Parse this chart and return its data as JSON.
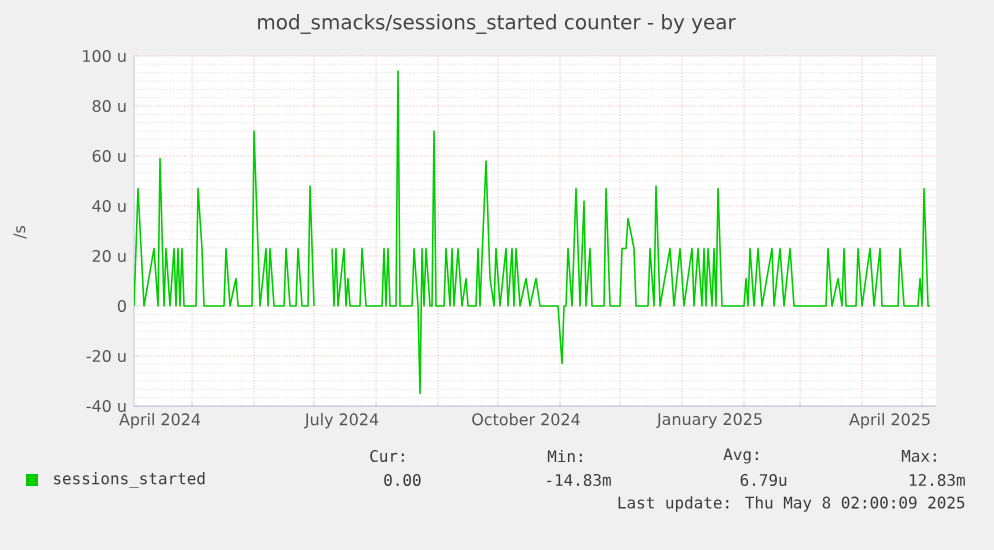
{
  "chart_data": {
    "type": "line",
    "title": "mod_smacks/sessions_started counter - by year",
    "ylabel": "/s",
    "xlim": [
      "2024-04-02",
      "2025-05-08"
    ],
    "xticks": [
      {
        "value": "2024-04-15",
        "label": "April 2024"
      },
      {
        "value": "2024-07-15",
        "label": "July 2024"
      },
      {
        "value": "2024-10-15",
        "label": "October 2024"
      },
      {
        "value": "2025-01-15",
        "label": "January 2025"
      },
      {
        "value": "2025-04-15",
        "label": "April 2025"
      },
      {
        "value": "2024-05-01",
        "label": null
      },
      {
        "value": "2024-06-01",
        "label": null
      },
      {
        "value": "2024-07-01",
        "label": null
      },
      {
        "value": "2024-08-01",
        "label": null
      },
      {
        "value": "2024-09-01",
        "label": null
      },
      {
        "value": "2024-10-01",
        "label": null
      },
      {
        "value": "2024-11-01",
        "label": null
      },
      {
        "value": "2024-12-01",
        "label": null
      },
      {
        "value": "2025-01-01",
        "label": null
      },
      {
        "value": "2025-02-01",
        "label": null
      },
      {
        "value": "2025-03-01",
        "label": null
      },
      {
        "value": "2025-04-01",
        "label": null
      },
      {
        "value": "2025-05-01",
        "label": null
      }
    ],
    "ylim": [
      -40,
      100
    ],
    "yticks": [
      {
        "value": -40,
        "label": "-40 u"
      },
      {
        "value": -20,
        "label": "-20 u"
      },
      0,
      {
        "value": 20,
        "label": "20 u"
      },
      {
        "value": 40,
        "label": "40 u"
      },
      {
        "value": 60,
        "label": "60 u"
      },
      {
        "value": 80,
        "label": "80 u"
      },
      {
        "value": 100,
        "label": "100 u"
      }
    ],
    "grid": true,
    "legend": "bottom",
    "marker": "none",
    "line_style": "solid",
    "annotations": [
      "Cur:",
      "Min:",
      "Avg:",
      "Max:",
      "0.00",
      "-14.83m",
      "6.79u",
      "12.83m",
      "Last update: Thu May  8 02:00:09 2025"
    ],
    "series": [
      {
        "name": "sessions_started",
        "color": "#00cc00",
        "x": [
          "2024-04-02",
          "2024-04-04",
          "2024-04-07",
          "2024-04-12",
          "2024-04-14",
          "2024-04-15",
          "2024-04-17",
          "2024-04-18",
          "2024-04-20",
          "2024-04-22",
          "2024-04-23",
          "2024-04-24",
          "2024-04-25",
          "2024-04-26",
          "2024-04-27",
          "2024-05-03",
          "2024-05-04",
          "2024-05-06",
          "2024-05-07",
          "2024-05-17",
          "2024-05-18",
          "2024-05-20",
          "2024-05-23",
          "2024-05-24",
          "2024-05-31",
          "2024-06-01",
          "2024-06-03",
          "2024-06-04",
          "2024-06-07",
          "2024-06-08",
          "2024-06-09",
          "2024-06-11",
          "2024-06-16",
          "2024-06-17",
          "2024-06-19",
          "2024-06-22",
          "2024-06-23",
          "2024-06-25",
          "2024-06-28",
          "2024-06-29",
          "2024-07-01",
          "2024-07-05",
          "2024-07-10",
          "2024-07-11",
          "2024-07-12",
          "2024-07-13",
          "2024-07-16",
          "2024-07-17",
          "2024-07-18",
          "2024-07-19",
          "2024-07-24",
          "2024-07-25",
          "2024-07-27",
          "2024-08-04",
          "2024-08-05",
          "2024-08-06",
          "2024-08-07",
          "2024-08-08",
          "2024-08-11",
          "2024-08-12",
          "2024-08-13",
          "2024-08-19",
          "2024-08-20",
          "2024-08-22",
          "2024-08-23",
          "2024-08-24",
          "2024-08-25",
          "2024-08-26",
          "2024-08-28",
          "2024-08-29",
          "2024-08-30",
          "2024-08-31",
          "2024-09-04",
          "2024-09-05",
          "2024-09-07",
          "2024-09-08",
          "2024-09-09",
          "2024-09-11",
          "2024-09-13",
          "2024-09-15",
          "2024-09-16",
          "2024-09-20",
          "2024-09-21",
          "2024-09-22",
          "2024-09-25",
          "2024-09-27",
          "2024-09-29",
          "2024-09-30",
          "2024-10-02",
          "2024-10-05",
          "2024-10-06",
          "2024-10-08",
          "2024-10-09",
          "2024-10-10",
          "2024-10-12",
          "2024-10-15",
          "2024-10-17",
          "2024-10-20",
          "2024-10-22",
          "2024-10-31",
          "2024-11-02",
          "2024-11-03",
          "2024-11-04",
          "2024-11-05",
          "2024-11-07",
          "2024-11-09",
          "2024-11-11",
          "2024-11-13",
          "2024-11-14",
          "2024-11-16",
          "2024-11-17",
          "2024-11-23",
          "2024-11-24",
          "2024-11-26",
          "2024-12-01",
          "2024-12-02",
          "2024-12-04",
          "2024-12-05",
          "2024-12-08",
          "2024-12-09",
          "2024-12-15",
          "2024-12-16",
          "2024-12-18",
          "2024-12-19",
          "2024-12-21",
          "2024-12-26",
          "2024-12-28",
          "2024-12-31",
          "2025-01-02",
          "2025-01-06",
          "2025-01-07",
          "2025-01-09",
          "2025-01-11",
          "2025-01-12",
          "2025-01-13",
          "2025-01-14",
          "2025-01-16",
          "2025-01-17",
          "2025-01-18",
          "2025-01-19",
          "2025-01-21",
          "2025-02-01",
          "2025-02-02",
          "2025-02-03",
          "2025-02-04",
          "2025-02-06",
          "2025-02-08",
          "2025-02-10",
          "2025-02-15",
          "2025-02-16",
          "2025-02-19",
          "2025-02-21",
          "2025-02-24",
          "2025-02-26",
          "2025-03-14",
          "2025-03-15",
          "2025-03-17",
          "2025-03-20",
          "2025-03-22",
          "2025-03-23",
          "2025-03-24",
          "2025-03-29",
          "2025-03-30",
          "2025-04-01",
          "2025-04-05",
          "2025-04-07",
          "2025-04-10",
          "2025-04-11",
          "2025-04-19",
          "2025-04-20",
          "2025-04-22",
          "2025-04-29",
          "2025-04-30",
          "2025-05-01",
          "2025-05-02",
          "2025-05-04",
          "2025-05-05"
        ],
        "values": [
          0,
          47,
          0,
          23,
          0,
          59,
          0,
          23,
          0,
          23,
          0,
          23,
          0,
          23,
          0,
          0,
          47,
          23,
          0,
          0,
          23,
          0,
          11,
          0,
          0,
          70,
          23,
          0,
          23,
          0,
          23,
          0,
          0,
          23,
          0,
          0,
          23,
          0,
          0,
          48,
          0,
          null,
          23,
          0,
          23,
          0,
          23,
          0,
          11,
          0,
          0,
          23,
          0,
          0,
          23,
          0,
          23,
          0,
          0,
          94,
          0,
          0,
          23,
          0,
          -35,
          23,
          0,
          23,
          0,
          0,
          70,
          0,
          0,
          23,
          0,
          23,
          0,
          23,
          0,
          11,
          0,
          0,
          23,
          0,
          58,
          11,
          0,
          23,
          0,
          23,
          0,
          23,
          0,
          23,
          0,
          11,
          0,
          11,
          0,
          0,
          -23,
          0,
          0,
          23,
          0,
          47,
          0,
          42,
          0,
          23,
          0,
          0,
          47,
          0,
          0,
          23,
          23,
          35,
          23,
          0,
          0,
          23,
          0,
          48,
          0,
          23,
          0,
          23,
          0,
          23,
          0,
          23,
          0,
          23,
          0,
          23,
          0,
          23,
          0,
          47,
          0,
          0,
          11,
          0,
          23,
          0,
          23,
          0,
          23,
          0,
          23,
          0,
          23,
          0,
          0,
          23,
          0,
          11,
          0,
          23,
          0,
          0,
          23,
          0,
          23,
          0,
          23,
          0,
          0,
          23,
          0,
          0,
          11,
          0,
          47,
          0,
          0
        ]
      }
    ]
  }
}
